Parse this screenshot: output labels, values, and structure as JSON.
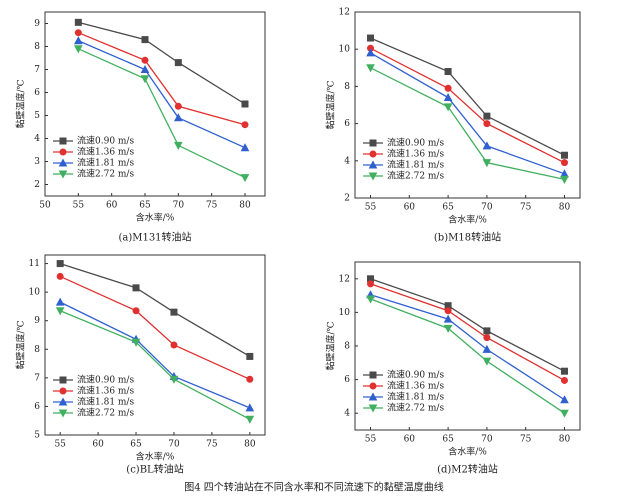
{
  "chart_data": [
    {
      "type": "line",
      "caption": "(a)M131转油站",
      "xlabel": "含水率/%",
      "ylabel": "黏壁温度/℃",
      "x": [
        55,
        65,
        70,
        80
      ],
      "xlim": [
        50,
        83
      ],
      "xticks": [
        50,
        55,
        60,
        65,
        70,
        75,
        80
      ],
      "ylim": [
        1.5,
        9.5
      ],
      "yticks": [
        2,
        3,
        4,
        5,
        6,
        7,
        8,
        9
      ],
      "legend": "lower left",
      "series": [
        {
          "name": "流速0.90 m/s",
          "color": "#4a4a4a",
          "marker": "square",
          "values": [
            9.05,
            8.3,
            7.3,
            5.5
          ]
        },
        {
          "name": "流速1.36 m/s",
          "color": "#e03030",
          "marker": "circle",
          "values": [
            8.6,
            7.4,
            5.4,
            4.6
          ]
        },
        {
          "name": "流速1.81 m/s",
          "color": "#3060d0",
          "marker": "triangle-up",
          "values": [
            8.25,
            7.0,
            4.9,
            3.6
          ]
        },
        {
          "name": "流速2.72 m/s",
          "color": "#40b060",
          "marker": "triangle-down",
          "values": [
            7.9,
            6.6,
            3.7,
            2.3
          ]
        }
      ]
    },
    {
      "type": "line",
      "caption": "(b)M18转油站",
      "xlabel": "含水率/%",
      "ylabel": "黏壁温度/℃",
      "x": [
        55,
        65,
        70,
        80
      ],
      "xlim": [
        53,
        82
      ],
      "xticks": [
        55,
        60,
        65,
        70,
        75,
        80
      ],
      "ylim": [
        2,
        12
      ],
      "yticks": [
        2,
        4,
        6,
        8,
        10,
        12
      ],
      "legend": "lower left",
      "series": [
        {
          "name": "流速0.90 m/s",
          "color": "#4a4a4a",
          "marker": "square",
          "values": [
            10.6,
            8.8,
            6.4,
            4.3
          ]
        },
        {
          "name": "流速1.36 m/s",
          "color": "#e03030",
          "marker": "circle",
          "values": [
            10.05,
            7.9,
            6.0,
            3.9
          ]
        },
        {
          "name": "流速1.81 m/s",
          "color": "#3060d0",
          "marker": "triangle-up",
          "values": [
            9.8,
            7.4,
            4.8,
            3.3
          ]
        },
        {
          "name": "流速2.72 m/s",
          "color": "#40b060",
          "marker": "triangle-down",
          "values": [
            9.0,
            6.9,
            3.9,
            3.0
          ]
        }
      ]
    },
    {
      "type": "line",
      "caption": "(c)BL转油站",
      "xlabel": "含水率/%",
      "ylabel": "黏壁温度/℃",
      "x": [
        55,
        65,
        70,
        80
      ],
      "xlim": [
        53,
        82
      ],
      "xticks": [
        55,
        60,
        65,
        70,
        75,
        80
      ],
      "ylim": [
        5,
        11.3
      ],
      "yticks": [
        5,
        6,
        7,
        8,
        9,
        10,
        11
      ],
      "legend": "lower left",
      "series": [
        {
          "name": "流速0.90 m/s",
          "color": "#4a4a4a",
          "marker": "square",
          "values": [
            11.0,
            10.15,
            9.3,
            7.75
          ]
        },
        {
          "name": "流速1.36 m/s",
          "color": "#e03030",
          "marker": "circle",
          "values": [
            10.55,
            9.35,
            8.15,
            6.95
          ]
        },
        {
          "name": "流速1.81 m/s",
          "color": "#3060d0",
          "marker": "triangle-up",
          "values": [
            9.65,
            8.35,
            7.05,
            5.95
          ]
        },
        {
          "name": "流速2.72 m/s",
          "color": "#40b060",
          "marker": "triangle-down",
          "values": [
            9.35,
            8.25,
            6.95,
            5.55
          ]
        }
      ]
    },
    {
      "type": "line",
      "caption": "(d)M2转油站",
      "xlabel": "含水率/%",
      "ylabel": "黏壁温度/℃",
      "x": [
        55,
        65,
        70,
        80
      ],
      "xlim": [
        53,
        82
      ],
      "xticks": [
        55,
        60,
        65,
        70,
        75,
        80
      ],
      "ylim": [
        3,
        13
      ],
      "yticks": [
        4,
        6,
        8,
        10,
        12
      ],
      "legend": "lower left",
      "series": [
        {
          "name": "流速0.90 m/s",
          "color": "#4a4a4a",
          "marker": "square",
          "values": [
            12.0,
            10.4,
            8.9,
            6.5
          ]
        },
        {
          "name": "流速1.36 m/s",
          "color": "#e03030",
          "marker": "circle",
          "values": [
            11.7,
            10.1,
            8.5,
            5.95
          ]
        },
        {
          "name": "流速1.81 m/s",
          "color": "#3060d0",
          "marker": "triangle-up",
          "values": [
            11.05,
            9.6,
            7.8,
            4.8
          ]
        },
        {
          "name": "流速2.72 m/s",
          "color": "#40b060",
          "marker": "triangle-down",
          "values": [
            10.8,
            9.05,
            7.1,
            4.0
          ]
        }
      ]
    }
  ],
  "figure_caption": "图4  四个转油站在不同含水率和不同流速下的黏壁温度曲线"
}
